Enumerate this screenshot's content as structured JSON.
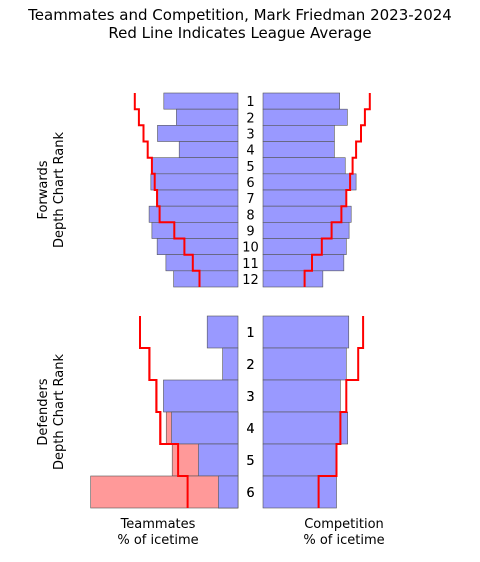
{
  "chart_data": {
    "type": "bar",
    "title": "Teammates and Competition, Mark Friedman 2023-2024",
    "subtitle": "Red Line Indicates League Average",
    "left_xlabel": "Teammates\n% of icetime",
    "right_xlabel": "Competition\n% of icetime",
    "colors": {
      "player": "#9999ff",
      "excess": "#ff9999",
      "league": "#ff0000"
    },
    "panels": [
      {
        "label": "Forwards\nDepth Chart Rank",
        "ranks": [
          "1",
          "2",
          "3",
          "4",
          "5",
          "6",
          "7",
          "8",
          "9",
          "10",
          "11",
          "12"
        ],
        "teammates": [
          21.2,
          17.6,
          23.0,
          16.8,
          24.6,
          24.9,
          23.3,
          25.4,
          24.6,
          23.1,
          20.6,
          18.4
        ],
        "teammates_league": [
          29.5,
          28.3,
          27.0,
          25.8,
          24.6,
          23.8,
          23.1,
          22.4,
          18.2,
          15.3,
          12.9,
          11.0
        ],
        "competition": [
          21.9,
          24.1,
          20.4,
          20.4,
          23.5,
          26.6,
          23.8,
          25.2,
          24.6,
          23.8,
          23.1,
          17.1
        ],
        "competition_league": [
          30.5,
          29.1,
          28.0,
          26.6,
          25.6,
          24.9,
          23.8,
          22.4,
          19.6,
          16.8,
          14.0,
          11.9
        ]
      },
      {
        "label": "Defenders\nDepth Chart Rank",
        "ranks": [
          "1",
          "2",
          "3",
          "4",
          "5",
          "6"
        ],
        "teammates": [
          8.8,
          4.4,
          21.3,
          19.0,
          11.3,
          5.6
        ],
        "teammates_league": [
          28.0,
          25.3,
          23.3,
          22.2,
          17.1,
          14.4
        ],
        "competition": [
          24.5,
          23.8,
          22.1,
          24.2,
          21.0,
          21.0
        ],
        "competition_league": [
          28.6,
          27.2,
          23.8,
          22.1,
          21.0,
          15.9
        ]
      }
    ]
  }
}
